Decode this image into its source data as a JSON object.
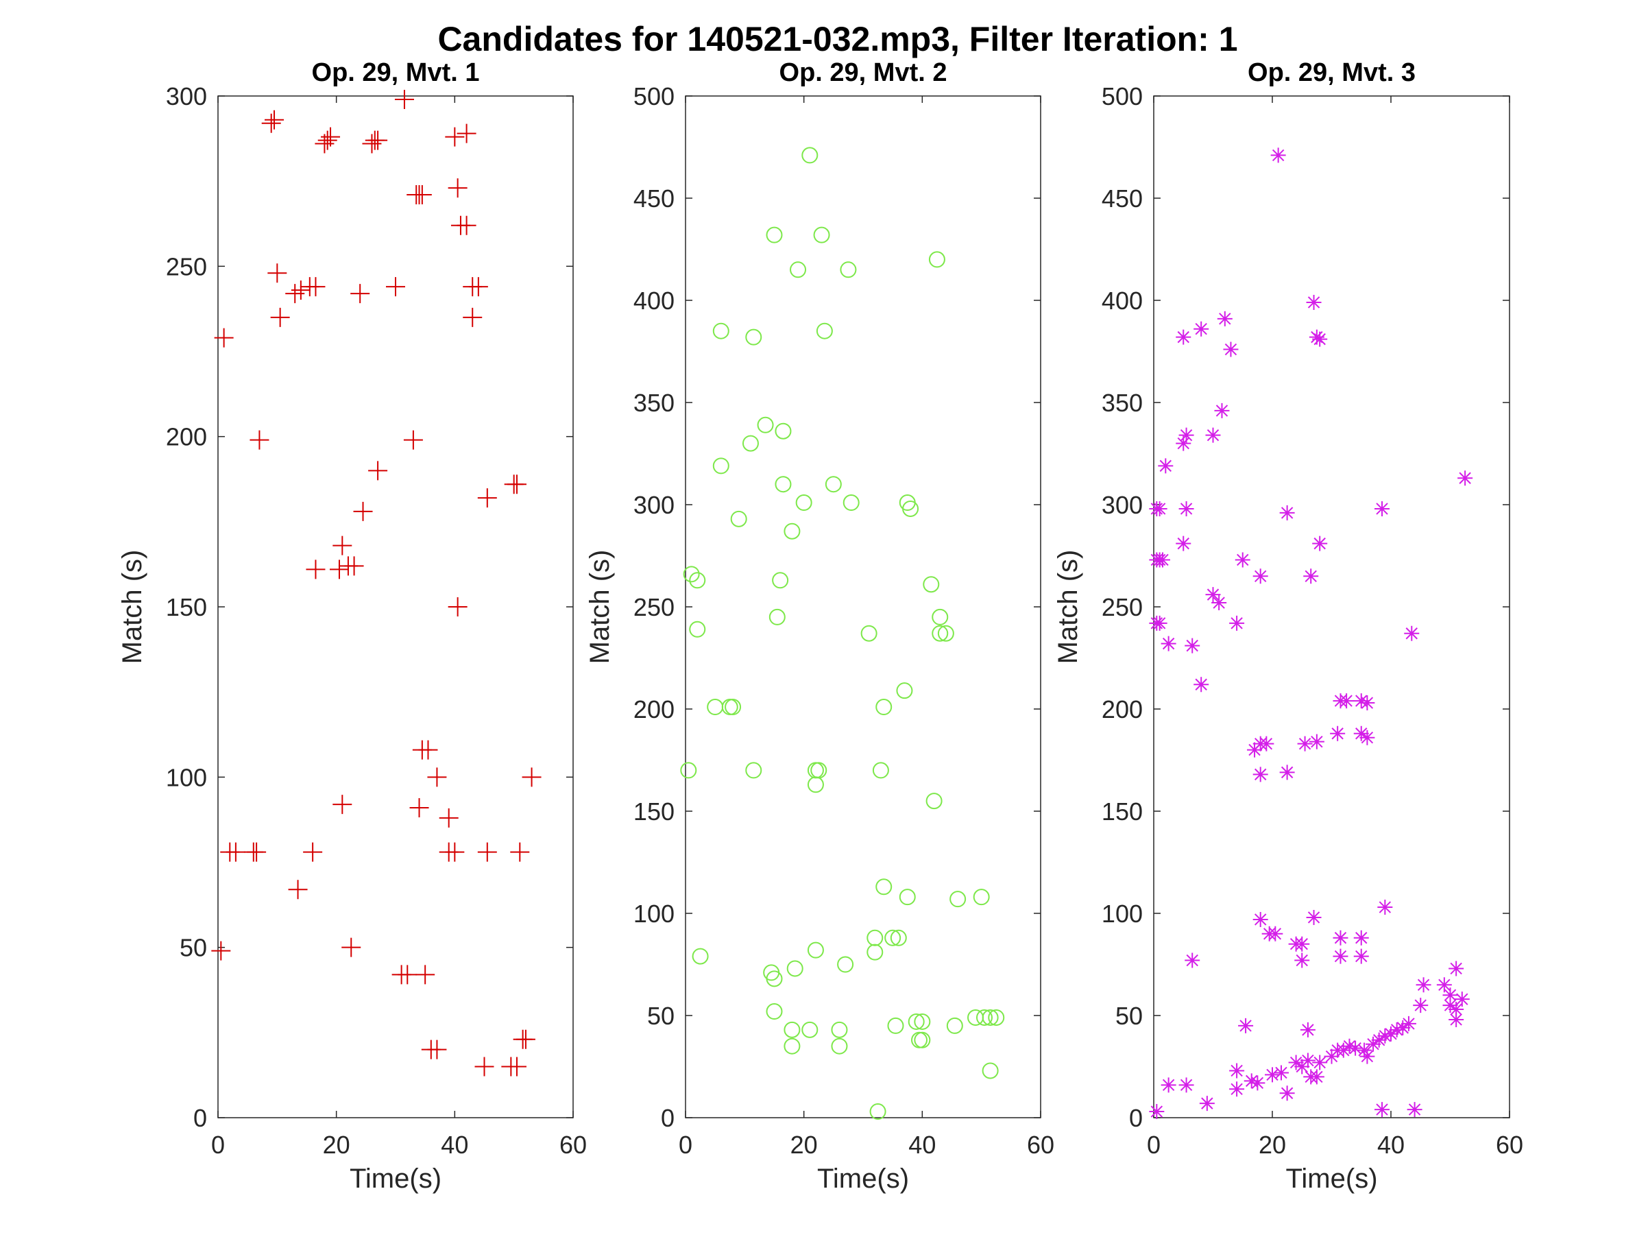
{
  "figure_title": "Candidates for 140521-032.mp3, Filter Iteration: 1",
  "chart_data": [
    {
      "type": "scatter",
      "title": "Op. 29, Mvt. 1",
      "xlabel": "Time(s)",
      "ylabel": "Match (s)",
      "xlim": [
        0,
        60
      ],
      "ylim": [
        0,
        300
      ],
      "xticks": [
        0,
        20,
        40,
        60
      ],
      "yticks": [
        0,
        50,
        100,
        150,
        200,
        250,
        300
      ],
      "marker": "plus",
      "color": "#d40000",
      "points": [
        [
          9,
          292
        ],
        [
          9.5,
          293
        ],
        [
          18,
          286
        ],
        [
          18.5,
          287
        ],
        [
          19,
          288
        ],
        [
          26,
          286
        ],
        [
          26.5,
          287
        ],
        [
          27,
          287
        ],
        [
          31.5,
          299
        ],
        [
          40,
          288
        ],
        [
          42,
          289
        ],
        [
          33.5,
          271
        ],
        [
          34,
          271
        ],
        [
          34.5,
          271
        ],
        [
          40.5,
          273
        ],
        [
          41,
          262
        ],
        [
          42,
          262
        ],
        [
          10,
          248
        ],
        [
          13,
          242
        ],
        [
          14,
          243
        ],
        [
          15.5,
          244
        ],
        [
          16.5,
          244
        ],
        [
          24,
          242
        ],
        [
          30,
          244
        ],
        [
          43,
          244
        ],
        [
          44,
          244
        ],
        [
          10.5,
          235
        ],
        [
          43,
          235
        ],
        [
          1,
          229
        ],
        [
          7,
          199
        ],
        [
          33,
          199
        ],
        [
          27,
          190
        ],
        [
          24.5,
          178
        ],
        [
          45.5,
          182
        ],
        [
          50,
          186
        ],
        [
          50.5,
          186
        ],
        [
          21,
          168
        ],
        [
          16.5,
          161
        ],
        [
          20.5,
          161
        ],
        [
          22,
          162
        ],
        [
          23,
          162
        ],
        [
          40.5,
          150
        ],
        [
          34.5,
          108
        ],
        [
          35.5,
          108
        ],
        [
          37,
          100
        ],
        [
          53,
          100
        ],
        [
          21,
          92
        ],
        [
          34,
          91
        ],
        [
          39,
          88
        ],
        [
          2,
          78
        ],
        [
          3,
          78
        ],
        [
          6,
          78
        ],
        [
          6.5,
          78
        ],
        [
          16,
          78
        ],
        [
          39,
          78
        ],
        [
          40,
          78
        ],
        [
          45.5,
          78
        ],
        [
          51,
          78
        ],
        [
          13.5,
          67
        ],
        [
          22.5,
          50
        ],
        [
          0.5,
          49
        ],
        [
          31,
          42
        ],
        [
          32,
          42
        ],
        [
          35,
          42
        ],
        [
          36,
          20
        ],
        [
          37,
          20
        ],
        [
          51.5,
          23
        ],
        [
          52,
          23
        ],
        [
          45,
          15
        ],
        [
          49.5,
          15
        ],
        [
          50.5,
          15
        ]
      ]
    },
    {
      "type": "scatter",
      "title": "Op. 29, Mvt. 2",
      "xlabel": "Time(s)",
      "ylabel": "Match (s)",
      "xlim": [
        0,
        60
      ],
      "ylim": [
        0,
        500
      ],
      "xticks": [
        0,
        20,
        40,
        60
      ],
      "yticks": [
        0,
        50,
        100,
        150,
        200,
        250,
        300,
        350,
        400,
        450,
        500
      ],
      "marker": "circle",
      "color": "#7de84a",
      "points": [
        [
          21,
          471
        ],
        [
          15,
          432
        ],
        [
          23,
          432
        ],
        [
          19,
          415
        ],
        [
          27.5,
          415
        ],
        [
          42.5,
          420
        ],
        [
          6,
          385
        ],
        [
          11.5,
          382
        ],
        [
          23.5,
          385
        ],
        [
          13.5,
          339
        ],
        [
          16.5,
          336
        ],
        [
          11,
          330
        ],
        [
          6,
          319
        ],
        [
          16.5,
          310
        ],
        [
          25,
          310
        ],
        [
          20,
          301
        ],
        [
          28,
          301
        ],
        [
          37.5,
          301
        ],
        [
          38,
          298
        ],
        [
          9,
          293
        ],
        [
          18,
          287
        ],
        [
          1,
          266
        ],
        [
          2,
          263
        ],
        [
          16,
          263
        ],
        [
          41.5,
          261
        ],
        [
          15.5,
          245
        ],
        [
          43,
          245
        ],
        [
          2,
          239
        ],
        [
          31,
          237
        ],
        [
          43,
          237
        ],
        [
          44,
          237
        ],
        [
          5,
          201
        ],
        [
          7.5,
          201
        ],
        [
          8,
          201
        ],
        [
          37,
          209
        ],
        [
          33.5,
          201
        ],
        [
          0.5,
          170
        ],
        [
          11.5,
          170
        ],
        [
          22,
          170
        ],
        [
          22.5,
          170
        ],
        [
          33,
          170
        ],
        [
          22,
          163
        ],
        [
          42,
          155
        ],
        [
          33.5,
          113
        ],
        [
          37.5,
          108
        ],
        [
          46,
          107
        ],
        [
          50,
          108
        ],
        [
          32,
          88
        ],
        [
          35,
          88
        ],
        [
          36,
          88
        ],
        [
          22,
          82
        ],
        [
          32,
          81
        ],
        [
          2.5,
          79
        ],
        [
          27,
          75
        ],
        [
          18.5,
          73
        ],
        [
          14.5,
          71
        ],
        [
          15,
          68
        ],
        [
          15,
          52
        ],
        [
          18,
          43
        ],
        [
          21,
          43
        ],
        [
          26,
          43
        ],
        [
          18,
          35
        ],
        [
          26,
          35
        ],
        [
          35.5,
          45
        ],
        [
          39,
          47
        ],
        [
          40,
          47
        ],
        [
          39.5,
          38
        ],
        [
          40,
          38
        ],
        [
          45.5,
          45
        ],
        [
          49,
          49
        ],
        [
          50.5,
          49
        ],
        [
          51.5,
          49
        ],
        [
          52.5,
          49
        ],
        [
          51.5,
          23
        ],
        [
          32.5,
          3
        ]
      ]
    },
    {
      "type": "scatter",
      "title": "Op. 29, Mvt. 3",
      "xlabel": "Time(s)",
      "ylabel": "Match (s)",
      "xlim": [
        0,
        60
      ],
      "ylim": [
        0,
        500
      ],
      "xticks": [
        0,
        20,
        40,
        60
      ],
      "yticks": [
        0,
        50,
        100,
        150,
        200,
        250,
        300,
        350,
        400,
        450,
        500
      ],
      "marker": "asterisk",
      "color": "#d41ee8",
      "points": [
        [
          21,
          471
        ],
        [
          27,
          399
        ],
        [
          5,
          382
        ],
        [
          8,
          386
        ],
        [
          12,
          391
        ],
        [
          13,
          376
        ],
        [
          27.5,
          382
        ],
        [
          28,
          381
        ],
        [
          11.5,
          346
        ],
        [
          5,
          330
        ],
        [
          5.5,
          334
        ],
        [
          10,
          334
        ],
        [
          2,
          319
        ],
        [
          52.5,
          313
        ],
        [
          0.5,
          298
        ],
        [
          1,
          298
        ],
        [
          5.5,
          298
        ],
        [
          22.5,
          296
        ],
        [
          38.5,
          298
        ],
        [
          0.5,
          273
        ],
        [
          1,
          273
        ],
        [
          1.5,
          273
        ],
        [
          5,
          281
        ],
        [
          10,
          256
        ],
        [
          11,
          252
        ],
        [
          15,
          273
        ],
        [
          18,
          265
        ],
        [
          26.5,
          265
        ],
        [
          28,
          281
        ],
        [
          0.5,
          242
        ],
        [
          1,
          242
        ],
        [
          2.5,
          232
        ],
        [
          6.5,
          231
        ],
        [
          14,
          242
        ],
        [
          43.5,
          237
        ],
        [
          8,
          212
        ],
        [
          17,
          180
        ],
        [
          18,
          183
        ],
        [
          19,
          183
        ],
        [
          25.5,
          183
        ],
        [
          27.5,
          184
        ],
        [
          31,
          188
        ],
        [
          31.5,
          204
        ],
        [
          32.5,
          204
        ],
        [
          35,
          204
        ],
        [
          36,
          203
        ],
        [
          35,
          188
        ],
        [
          36,
          186
        ],
        [
          18,
          168
        ],
        [
          22.5,
          169
        ],
        [
          0.5,
          3
        ],
        [
          18,
          97
        ],
        [
          27,
          98
        ],
        [
          31.5,
          88
        ],
        [
          35,
          88
        ],
        [
          39,
          103
        ],
        [
          19.5,
          90
        ],
        [
          20.5,
          90
        ],
        [
          24,
          85
        ],
        [
          25,
          85
        ],
        [
          25,
          77
        ],
        [
          31.5,
          79
        ],
        [
          35,
          79
        ],
        [
          6.5,
          77
        ],
        [
          2.5,
          16
        ],
        [
          5.5,
          16
        ],
        [
          9,
          7
        ],
        [
          15.5,
          45
        ],
        [
          26,
          43
        ],
        [
          14,
          23
        ],
        [
          14,
          14
        ],
        [
          16.5,
          18
        ],
        [
          17.5,
          17
        ],
        [
          20,
          21
        ],
        [
          21.5,
          22
        ],
        [
          22.5,
          12
        ],
        [
          24,
          27
        ],
        [
          25,
          25
        ],
        [
          26,
          28
        ],
        [
          26.5,
          20
        ],
        [
          27.5,
          20
        ],
        [
          28,
          27
        ],
        [
          30,
          30
        ],
        [
          31,
          33
        ],
        [
          32,
          33
        ],
        [
          33,
          35
        ],
        [
          34,
          34
        ],
        [
          35.5,
          33
        ],
        [
          36,
          30
        ],
        [
          37,
          36
        ],
        [
          38,
          38
        ],
        [
          39,
          40
        ],
        [
          40,
          41
        ],
        [
          41,
          43
        ],
        [
          42,
          44
        ],
        [
          43,
          46
        ],
        [
          45,
          55
        ],
        [
          45.5,
          65
        ],
        [
          49,
          65
        ],
        [
          50,
          60
        ],
        [
          51,
          73
        ],
        [
          50,
          55
        ],
        [
          51,
          53
        ],
        [
          52,
          58
        ],
        [
          51,
          48
        ],
        [
          38.5,
          4
        ],
        [
          44,
          4
        ]
      ]
    }
  ]
}
